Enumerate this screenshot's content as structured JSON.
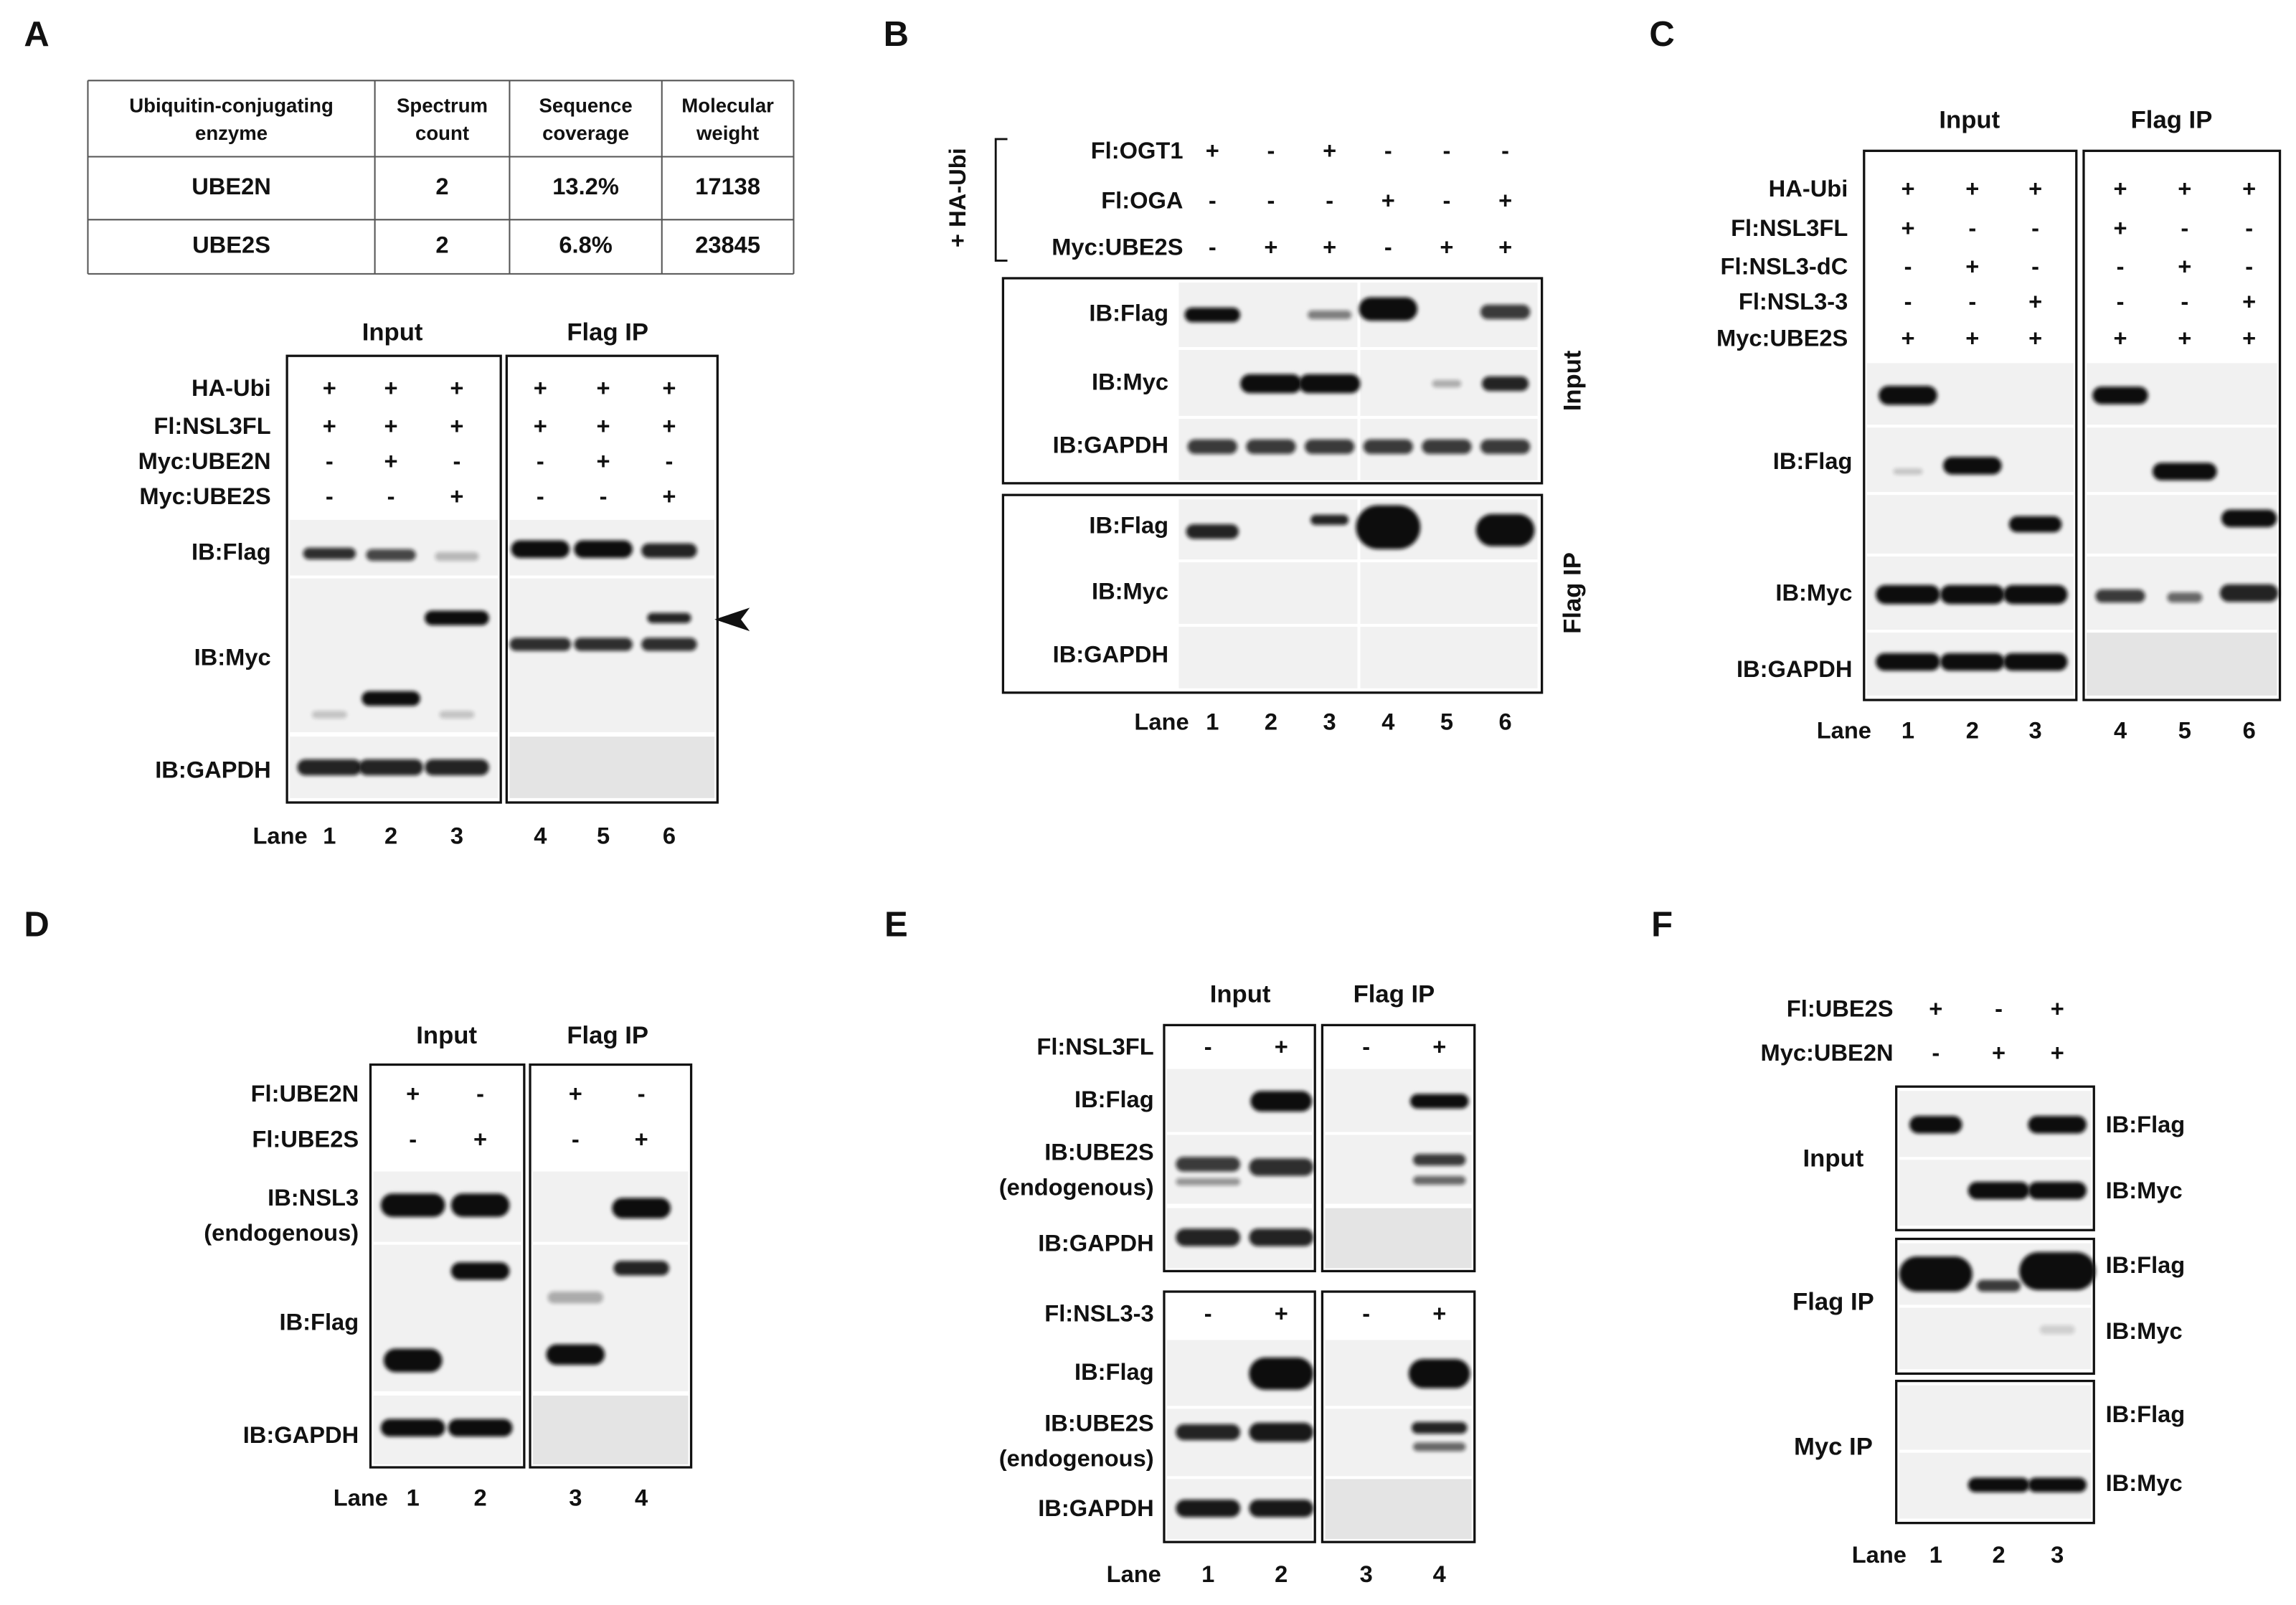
{
  "panels": [
    {
      "label": "A",
      "table": {
        "header": [
          [
            "Ubiquitin-conjugating",
            "enzyme"
          ],
          [
            "Spectrum",
            "count"
          ],
          [
            "Sequence",
            "coverage"
          ],
          [
            "Molecular",
            "weight"
          ]
        ],
        "rows": [
          [
            "UBE2N",
            "2",
            "13.2%",
            "17138"
          ],
          [
            "UBE2S",
            "2",
            "6.8%",
            "23845"
          ]
        ]
      },
      "groups": [
        "Input",
        "Flag IP"
      ],
      "conditions": [
        {
          "label": "HA-Ubi",
          "signs": [
            "+",
            "+",
            "+",
            "+",
            "+",
            "+"
          ]
        },
        {
          "label": "Fl:NSL3FL",
          "signs": [
            "+",
            "+",
            "+",
            "+",
            "+",
            "+"
          ]
        },
        {
          "label": "Myc:UBE2N",
          "signs": [
            "-",
            "+",
            "-",
            "-",
            "+",
            "-"
          ]
        },
        {
          "label": "Myc:UBE2S",
          "signs": [
            "-",
            "-",
            "+",
            "-",
            "-",
            "+"
          ]
        }
      ],
      "blots": [
        [
          "IB:Flag"
        ],
        [
          "IB:Myc"
        ],
        [
          "IB:GAPDH"
        ]
      ],
      "lane_label": "Lane",
      "lanes": [
        "1",
        "2",
        "3",
        "4",
        "5",
        "6"
      ]
    },
    {
      "label": "B",
      "side_label": "+ HA-Ubi",
      "conditions": [
        {
          "label": "Fl:OGT1",
          "signs": [
            "+",
            "-",
            "+",
            "-",
            "-",
            "-"
          ]
        },
        {
          "label": "Fl:OGA",
          "signs": [
            "-",
            "-",
            "-",
            "+",
            "-",
            "+"
          ]
        },
        {
          "label": "Myc:UBE2S",
          "signs": [
            "-",
            "+",
            "+",
            "-",
            "+",
            "+"
          ]
        }
      ],
      "blot_groups": [
        {
          "name": "Input",
          "blots": [
            "IB:Flag",
            "IB:Myc",
            "IB:GAPDH"
          ]
        },
        {
          "name": "Flag IP",
          "blots": [
            "IB:Flag",
            "IB:Myc",
            "IB:GAPDH"
          ]
        }
      ],
      "lane_label": "Lane",
      "lanes": [
        "1",
        "2",
        "3",
        "4",
        "5",
        "6"
      ]
    },
    {
      "label": "C",
      "groups": [
        "Input",
        "Flag IP"
      ],
      "conditions": [
        {
          "label": "HA-Ubi",
          "signs": [
            "+",
            "+",
            "+",
            "+",
            "+",
            "+"
          ]
        },
        {
          "label": "Fl:NSL3FL",
          "signs": [
            "+",
            "-",
            "-",
            "+",
            "-",
            "-"
          ]
        },
        {
          "label": "Fl:NSL3-dC",
          "signs": [
            "-",
            "+",
            "-",
            "-",
            "+",
            "-"
          ]
        },
        {
          "label": "Fl:NSL3-3",
          "signs": [
            "-",
            "-",
            "+",
            "-",
            "-",
            "+"
          ]
        },
        {
          "label": "Myc:UBE2S",
          "signs": [
            "+",
            "+",
            "+",
            "+",
            "+",
            "+"
          ]
        }
      ],
      "blots": [
        [
          "IB:Flag"
        ],
        [
          "IB:Myc"
        ],
        [
          "IB:GAPDH"
        ]
      ],
      "lane_label": "Lane",
      "lanes": [
        "1",
        "2",
        "3",
        "4",
        "5",
        "6"
      ]
    },
    {
      "label": "D",
      "groups": [
        "Input",
        "Flag IP"
      ],
      "conditions": [
        {
          "label": "Fl:UBE2N",
          "signs": [
            "+",
            "-",
            "+",
            "-"
          ]
        },
        {
          "label": "Fl:UBE2S",
          "signs": [
            "-",
            "+",
            "-",
            "+"
          ]
        }
      ],
      "blots": [
        [
          "IB:NSL3",
          "(endogenous)"
        ],
        [
          "IB:Flag"
        ],
        [
          "IB:GAPDH"
        ]
      ],
      "lane_label": "Lane",
      "lanes": [
        "1",
        "2",
        "3",
        "4"
      ]
    },
    {
      "label": "E",
      "groups": [
        "Input",
        "Flag IP"
      ],
      "blocks": [
        {
          "condition": {
            "label": "Fl:NSL3FL",
            "signs": [
              "-",
              "+",
              "-",
              "+"
            ]
          },
          "blots": [
            [
              "IB:Flag"
            ],
            [
              "IB:UBE2S",
              "(endogenous)"
            ],
            [
              "IB:GAPDH"
            ]
          ]
        },
        {
          "condition": {
            "label": "Fl:NSL3-3",
            "signs": [
              "-",
              "+",
              "-",
              "+"
            ]
          },
          "blots": [
            [
              "IB:Flag"
            ],
            [
              "IB:UBE2S",
              "(endogenous)"
            ],
            [
              "IB:GAPDH"
            ]
          ]
        }
      ],
      "lane_label": "Lane",
      "lanes": [
        "1",
        "2",
        "3",
        "4"
      ]
    },
    {
      "label": "F",
      "conditions": [
        {
          "label": "Fl:UBE2S",
          "signs": [
            "+",
            "-",
            "+"
          ]
        },
        {
          "label": "Myc:UBE2N",
          "signs": [
            "-",
            "+",
            "+"
          ]
        }
      ],
      "blot_groups": [
        {
          "name": "Input",
          "blots": [
            "IB:Flag",
            "IB:Myc"
          ]
        },
        {
          "name": "Flag IP",
          "blots": [
            "IB:Flag",
            "IB:Myc"
          ]
        },
        {
          "name": "Myc IP",
          "blots": [
            "IB:Flag",
            "IB:Myc"
          ]
        }
      ],
      "lane_label": "Lane",
      "lanes": [
        "1",
        "2",
        "3"
      ]
    }
  ]
}
